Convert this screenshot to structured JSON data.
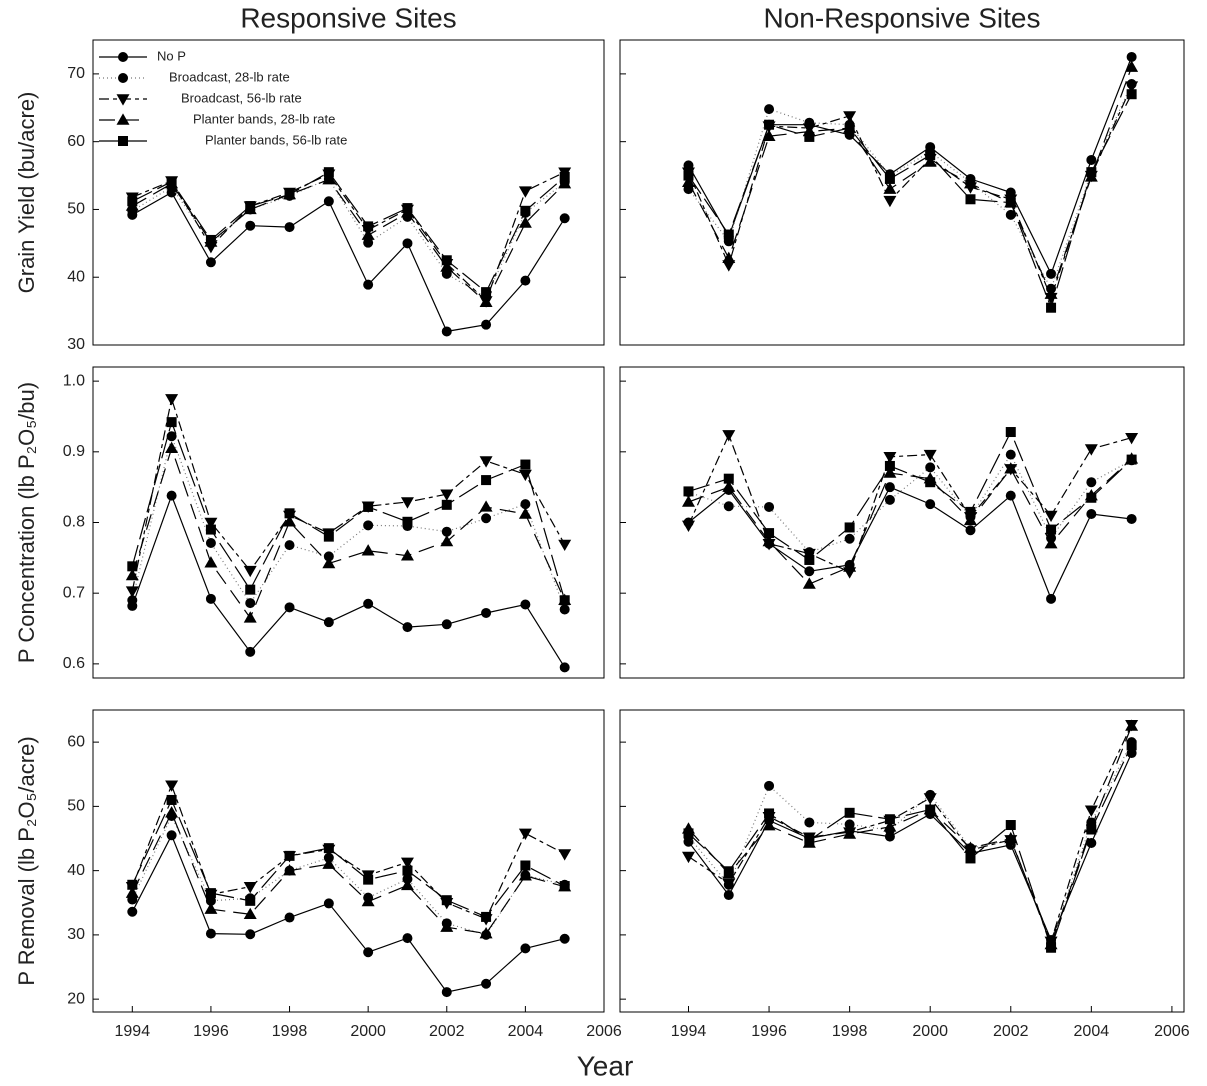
{
  "chart_data": [
    {
      "type": "line",
      "title": "Responsive Sites",
      "ylabel": "Grain Yield (bu/acre)",
      "legend": "upper left",
      "x": [
        1994,
        1995,
        1996,
        1997,
        1998,
        1999,
        2000,
        2001,
        2002,
        2003,
        2004,
        2005
      ],
      "xlim": [
        1993,
        2006
      ],
      "ylim": [
        30,
        75
      ],
      "yticks": [
        30,
        40,
        50,
        60,
        70
      ],
      "show_ytick_labels": true,
      "series": [
        {
          "name": "No P",
          "color": "#000000",
          "marker": "circle",
          "dash": "none",
          "values": [
            49.2,
            52.5,
            42.2,
            47.6,
            47.4,
            51.2,
            38.9,
            45.0,
            32.0,
            33.0,
            39.5,
            48.7
          ]
        },
        {
          "name": "Broadcast, 28-lb rate",
          "color": "#000000",
          "marker": "circle",
          "dash": "1,3",
          "values": [
            49.8,
            53.3,
            45.0,
            50.0,
            52.0,
            54.5,
            45.1,
            48.9,
            40.5,
            37.0,
            49.5,
            54.0
          ]
        },
        {
          "name": "Broadcast, 56-lb rate",
          "color": "#000000",
          "marker": "triangle-down",
          "dash": "10,4,4,4",
          "values": [
            51.8,
            54.2,
            44.5,
            50.5,
            52.5,
            55.2,
            47.0,
            50.0,
            42.0,
            36.5,
            52.7,
            55.5
          ]
        },
        {
          "name": "Planter bands, 28-lb rate",
          "color": "#000000",
          "marker": "triangle-up",
          "dash": "16,8",
          "values": [
            50.5,
            53.8,
            45.2,
            50.0,
            52.2,
            54.4,
            46.2,
            49.5,
            41.5,
            36.3,
            48.0,
            53.8
          ]
        },
        {
          "name": "Planter bands, 56-lb rate",
          "color": "#000000",
          "marker": "square",
          "dash": "22,6",
          "values": [
            51.2,
            54.1,
            45.5,
            50.5,
            52.2,
            55.5,
            47.5,
            50.2,
            42.5,
            37.8,
            49.8,
            54.8
          ]
        }
      ]
    },
    {
      "type": "line",
      "title": "Non-Responsive Sites",
      "x": [
        1994,
        1995,
        1996,
        1997,
        1998,
        1999,
        2000,
        2001,
        2002,
        2003,
        2004,
        2005
      ],
      "xlim": [
        1992.3,
        2006.3
      ],
      "ylim": [
        30,
        75
      ],
      "yticks": [
        30,
        40,
        50,
        60,
        70
      ],
      "show_ytick_labels": false,
      "series": [
        {
          "color": "#000000",
          "marker": "circle",
          "dash": "none",
          "values": [
            56.5,
            46.0,
            62.5,
            62.5,
            61.0,
            55.2,
            59.2,
            54.5,
            52.5,
            40.5,
            57.3,
            72.5
          ]
        },
        {
          "color": "#000000",
          "marker": "circle",
          "dash": "1,3",
          "values": [
            53.0,
            45.3,
            64.8,
            62.8,
            62.5,
            55.0,
            58.5,
            54.0,
            49.2,
            38.3,
            55.5,
            68.5
          ]
        },
        {
          "color": "#000000",
          "marker": "triangle-down",
          "dash": "10,4,4,4",
          "values": [
            55.5,
            41.8,
            62.3,
            62.0,
            63.8,
            51.3,
            57.5,
            53.3,
            51.5,
            37.0,
            55.0,
            68.2
          ]
        },
        {
          "color": "#000000",
          "marker": "triangle-up",
          "dash": "16,8",
          "values": [
            54.0,
            42.8,
            60.8,
            61.5,
            62.0,
            53.0,
            57.0,
            53.8,
            51.0,
            37.5,
            54.8,
            71.0
          ]
        },
        {
          "color": "#000000",
          "marker": "square",
          "dash": "22,6",
          "values": [
            55.0,
            46.3,
            62.5,
            60.7,
            62.0,
            54.5,
            58.0,
            51.5,
            51.0,
            35.5,
            55.5,
            67.0
          ]
        }
      ]
    },
    {
      "type": "line",
      "ylabel": "P Concentration (lb P₂O₅/bu)",
      "x": [
        1994,
        1995,
        1996,
        1997,
        1998,
        1999,
        2000,
        2001,
        2002,
        2003,
        2004,
        2005
      ],
      "xlim": [
        1993,
        2006
      ],
      "ylim": [
        0.58,
        1.02
      ],
      "yticks": [
        0.6,
        0.7,
        0.8,
        0.9,
        {
          "value": 1,
          "label": "1.0"
        }
      ],
      "show_ytick_labels": true,
      "series": [
        {
          "color": "#000000",
          "marker": "circle",
          "dash": "none",
          "values": [
            0.682,
            0.838,
            0.692,
            0.617,
            0.68,
            0.659,
            0.685,
            0.652,
            0.656,
            0.672,
            0.684,
            0.595
          ]
        },
        {
          "color": "#000000",
          "marker": "circle",
          "dash": "1,3",
          "values": [
            0.69,
            0.922,
            0.771,
            0.686,
            0.768,
            0.752,
            0.796,
            0.795,
            0.787,
            0.806,
            0.826,
            0.677
          ]
        },
        {
          "color": "#000000",
          "marker": "triangle-down",
          "dash": "10,4,4,4",
          "values": [
            0.703,
            0.975,
            0.8,
            0.732,
            0.81,
            0.785,
            0.823,
            0.829,
            0.84,
            0.887,
            0.868,
            0.769
          ]
        },
        {
          "color": "#000000",
          "marker": "triangle-up",
          "dash": "16,8",
          "values": [
            0.725,
            0.905,
            0.743,
            0.665,
            0.801,
            0.742,
            0.76,
            0.753,
            0.773,
            0.822,
            0.812,
            0.69
          ]
        },
        {
          "color": "#000000",
          "marker": "square",
          "dash": "22,6",
          "values": [
            0.738,
            0.942,
            0.79,
            0.705,
            0.813,
            0.78,
            0.822,
            0.801,
            0.825,
            0.86,
            0.882,
            0.69
          ]
        }
      ]
    },
    {
      "type": "line",
      "x": [
        1994,
        1995,
        1996,
        1997,
        1998,
        1999,
        2000,
        2001,
        2002,
        2003,
        2004,
        2005
      ],
      "xlim": [
        1992.3,
        2006.3
      ],
      "ylim": [
        0.58,
        1.02
      ],
      "yticks": [
        0.6,
        0.7,
        0.8,
        0.9,
        1
      ],
      "show_ytick_labels": false,
      "series": [
        {
          "color": "#000000",
          "marker": "circle",
          "dash": "none",
          "values": [
            0.8,
            0.846,
            0.77,
            0.731,
            0.74,
            0.85,
            0.826,
            0.789,
            0.838,
            0.692,
            0.812,
            0.805
          ]
        },
        {
          "color": "#000000",
          "marker": "circle",
          "dash": "1,3",
          "values": [
            0.843,
            0.823,
            0.822,
            0.758,
            0.777,
            0.832,
            0.878,
            0.808,
            0.896,
            0.778,
            0.857,
            0.888
          ]
        },
        {
          "color": "#000000",
          "marker": "triangle-down",
          "dash": "10,4,4,4",
          "values": [
            0.796,
            0.924,
            0.77,
            0.756,
            0.73,
            0.893,
            0.896,
            0.808,
            0.876,
            0.81,
            0.904,
            0.92
          ]
        },
        {
          "color": "#000000",
          "marker": "triangle-up",
          "dash": "16,8",
          "values": [
            0.829,
            0.85,
            0.773,
            0.713,
            0.737,
            0.87,
            0.862,
            0.803,
            0.876,
            0.77,
            0.838,
            0.89
          ]
        },
        {
          "color": "#000000",
          "marker": "square",
          "dash": "22,6",
          "values": [
            0.844,
            0.862,
            0.785,
            0.747,
            0.793,
            0.88,
            0.857,
            0.815,
            0.928,
            0.79,
            0.835,
            0.889
          ]
        }
      ]
    },
    {
      "type": "line",
      "ylabel": "P Removal (lb P₂O₅/acre)",
      "xlabel": "Year",
      "x": [
        1994,
        1995,
        1996,
        1997,
        1998,
        1999,
        2000,
        2001,
        2002,
        2003,
        2004,
        2005
      ],
      "xlim": [
        1993,
        2006
      ],
      "xticks": [
        1994,
        1996,
        1998,
        2000,
        2002,
        2004,
        2006
      ],
      "ylim": [
        18,
        65
      ],
      "yticks": [
        20,
        30,
        40,
        50,
        60
      ],
      "show_ytick_labels": true,
      "series": [
        {
          "color": "#000000",
          "marker": "circle",
          "dash": "none",
          "values": [
            33.6,
            45.5,
            30.2,
            30.1,
            32.7,
            34.9,
            27.3,
            29.5,
            21.1,
            22.4,
            27.9,
            29.4
          ]
        },
        {
          "color": "#000000",
          "marker": "circle",
          "dash": "1,3",
          "values": [
            35.5,
            48.5,
            35.3,
            35.7,
            40.0,
            42.0,
            35.8,
            38.7,
            31.8,
            30.0,
            39.3,
            37.8
          ]
        },
        {
          "color": "#000000",
          "marker": "triangle-down",
          "dash": "10,4,4,4",
          "values": [
            37.5,
            53.3,
            36.3,
            37.5,
            42.3,
            43.3,
            39.3,
            41.3,
            35.0,
            32.5,
            45.8,
            42.6
          ]
        },
        {
          "color": "#000000",
          "marker": "triangle-up",
          "dash": "16,8",
          "values": [
            36.5,
            49.0,
            34.0,
            33.2,
            40.0,
            41.0,
            35.2,
            37.7,
            31.2,
            30.2,
            39.2,
            37.5
          ]
        },
        {
          "color": "#000000",
          "marker": "square",
          "dash": "22,6",
          "values": [
            37.8,
            51.0,
            36.5,
            35.3,
            42.3,
            43.5,
            38.6,
            40.0,
            35.4,
            32.8,
            40.8,
            37.6
          ]
        }
      ]
    },
    {
      "type": "line",
      "x": [
        1994,
        1995,
        1996,
        1997,
        1998,
        1999,
        2000,
        2001,
        2002,
        2003,
        2004,
        2005
      ],
      "xlim": [
        1992.3,
        2006.3
      ],
      "xticks": [
        1994,
        1996,
        1998,
        2000,
        2002,
        2004,
        2006
      ],
      "ylim": [
        18,
        65
      ],
      "yticks": [
        20,
        30,
        40,
        50,
        60
      ],
      "show_ytick_labels": false,
      "series": [
        {
          "color": "#000000",
          "marker": "circle",
          "dash": "none",
          "values": [
            44.5,
            36.2,
            47.8,
            45.0,
            46.2,
            45.3,
            48.8,
            42.7,
            44.0,
            29.2,
            44.3,
            58.3
          ]
        },
        {
          "color": "#000000",
          "marker": "circle",
          "dash": "1,3",
          "values": [
            45.3,
            37.8,
            53.2,
            47.5,
            47.2,
            46.3,
            51.8,
            43.5,
            44.8,
            28.8,
            47.5,
            60.0
          ]
        },
        {
          "color": "#000000",
          "marker": "triangle-down",
          "dash": "10,4,4,4",
          "values": [
            42.2,
            38.0,
            48.4,
            45.2,
            46.0,
            47.8,
            51.3,
            43.2,
            44.8,
            29.0,
            49.4,
            62.7
          ]
        },
        {
          "color": "#000000",
          "marker": "triangle-up",
          "dash": "16,8",
          "values": [
            46.5,
            39.5,
            47.0,
            44.3,
            45.7,
            46.8,
            49.5,
            43.5,
            45.0,
            28.5,
            46.7,
            62.5
          ]
        },
        {
          "color": "#000000",
          "marker": "square",
          "dash": "22,6",
          "values": [
            45.8,
            39.9,
            48.9,
            44.7,
            49.0,
            48.0,
            49.5,
            41.9,
            47.1,
            28.0,
            46.4,
            59.5
          ]
        }
      ]
    }
  ]
}
